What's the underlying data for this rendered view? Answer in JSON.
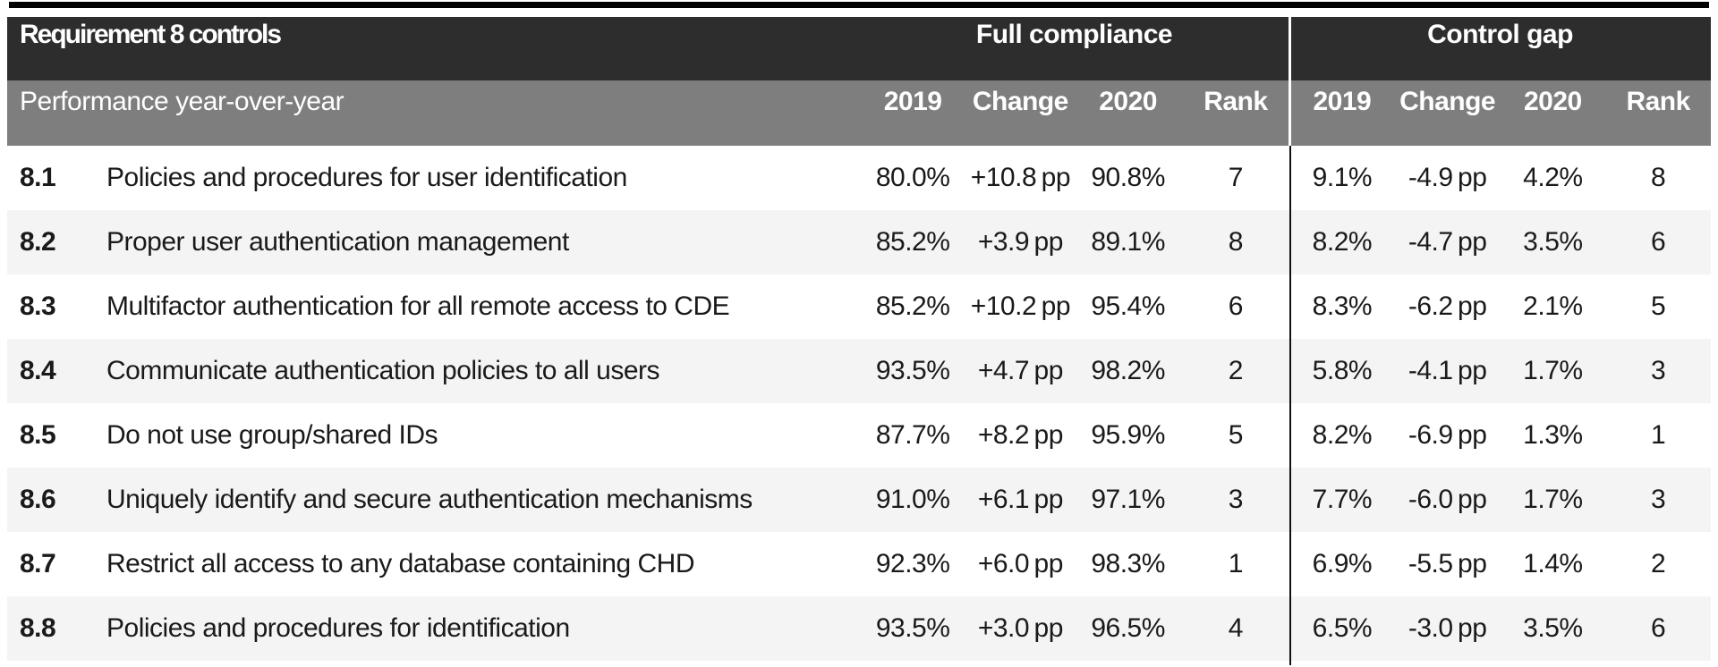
{
  "colors": {
    "header_dark": "#2d2d2d",
    "header_gray": "#7e7e7e",
    "row_alt": "#f4f4f4",
    "text": "#1a1a1a",
    "divider_header": "#ffffff",
    "divider_body": "#111111",
    "top_rule": "#000000"
  },
  "chart_data": {
    "type": "table",
    "title": "Requirement 8 controls",
    "subtitle": "Performance year-over-year",
    "sections": [
      {
        "label": "Full compliance",
        "columns": [
          "2019",
          "Change",
          "2020",
          "Rank"
        ]
      },
      {
        "label": "Control gap",
        "columns": [
          "2019",
          "Change",
          "2020",
          "Rank"
        ]
      }
    ],
    "rows": [
      {
        "id": "8.1",
        "description": "Policies and procedures for user identification",
        "values": [
          "80.0%",
          "+10.8 pp",
          "90.8%",
          "7",
          "9.1%",
          "-4.9 pp",
          "4.2%",
          "8"
        ]
      },
      {
        "id": "8.2",
        "description": "Proper user authentication management",
        "values": [
          "85.2%",
          "+3.9 pp",
          "89.1%",
          "8",
          "8.2%",
          "-4.7 pp",
          "3.5%",
          "6"
        ]
      },
      {
        "id": "8.3",
        "description": "Multifactor authentication for all remote access to CDE",
        "values": [
          "85.2%",
          "+10.2 pp",
          "95.4%",
          "6",
          "8.3%",
          "-6.2 pp",
          "2.1%",
          "5"
        ]
      },
      {
        "id": "8.4",
        "description": "Communicate authentication policies to all users",
        "values": [
          "93.5%",
          "+4.7 pp",
          "98.2%",
          "2",
          "5.8%",
          "-4.1 pp",
          "1.7%",
          "3"
        ]
      },
      {
        "id": "8.5",
        "description": "Do not use group/shared IDs",
        "values": [
          "87.7%",
          "+8.2 pp",
          "95.9%",
          "5",
          "8.2%",
          "-6.9 pp",
          "1.3%",
          "1"
        ]
      },
      {
        "id": "8.6",
        "description": "Uniquely identify and secure authentication mechanisms",
        "values": [
          "91.0%",
          "+6.1 pp",
          "97.1%",
          "3",
          "7.7%",
          "-6.0 pp",
          "1.7%",
          "3"
        ]
      },
      {
        "id": "8.7",
        "description": "Restrict all access to any database containing CHD",
        "values": [
          "92.3%",
          "+6.0 pp",
          "98.3%",
          "1",
          "6.9%",
          "-5.5 pp",
          "1.4%",
          "2"
        ]
      },
      {
        "id": "8.8",
        "description": "Policies and procedures for identification",
        "values": [
          "93.5%",
          "+3.0 pp",
          "96.5%",
          "4",
          "6.5%",
          "-3.0 pp",
          "3.5%",
          "6"
        ]
      }
    ]
  }
}
